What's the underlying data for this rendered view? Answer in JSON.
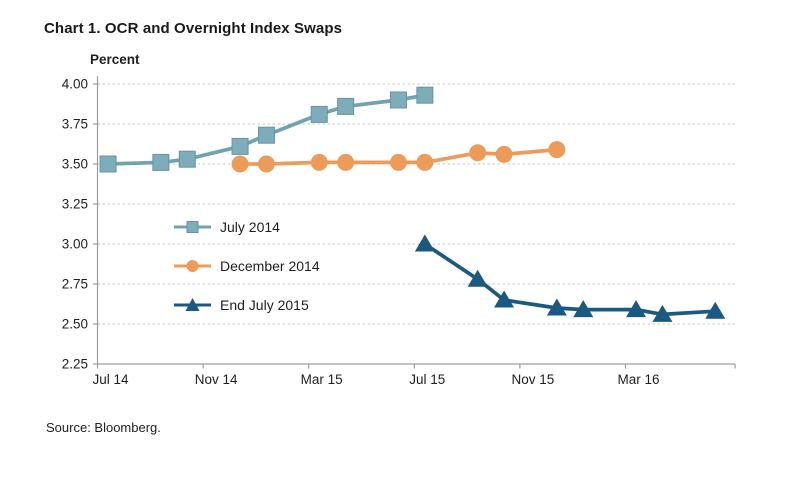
{
  "title": "Chart 1. OCR and Overnight Index Swaps",
  "source": "Source: Bloomberg.",
  "chart_data": {
    "type": "line",
    "title": "Chart 1. OCR and Overnight Index Swaps",
    "ylabel": "Percent",
    "ylim": [
      2.25,
      4.0
    ],
    "ytick_labels": [
      "4.00",
      "3.75",
      "3.50",
      "3.25",
      "3.00",
      "2.75",
      "2.50",
      "2.25"
    ],
    "x_axis": {
      "unit": "months after Jul 2014",
      "range_months": [
        0,
        24.15
      ],
      "tick_months": [
        0,
        4,
        8,
        12,
        16,
        20
      ],
      "tick_labels": [
        "Jul 14",
        "Nov 14",
        "Mar 15",
        "Jul 15",
        "Nov 15",
        "Mar 16"
      ]
    },
    "grid": {
      "horizontal_dashed": true,
      "color": "#c9c9c9"
    },
    "axis_color": "#9d9d9d",
    "text_color": "#1f1f1f",
    "legend_position": "inside-left-middle",
    "series": [
      {
        "name": "July 2014",
        "marker": "square",
        "color": "#7dacba",
        "line_color": "#6fa3b2",
        "points": [
          {
            "date": "Jul 14",
            "m": 0.4,
            "value": 3.5
          },
          {
            "date": "Sep 14",
            "m": 2.4,
            "value": 3.51
          },
          {
            "date": "Oct 14",
            "m": 3.4,
            "value": 3.53
          },
          {
            "date": "Dec 14",
            "m": 5.4,
            "value": 3.61
          },
          {
            "date": "Jan 15",
            "m": 6.4,
            "value": 3.68
          },
          {
            "date": "Mar 15",
            "m": 8.4,
            "value": 3.81
          },
          {
            "date": "Apr 15",
            "m": 9.4,
            "value": 3.86
          },
          {
            "date": "Jun 15",
            "m": 11.4,
            "value": 3.9
          },
          {
            "date": "Jul 15",
            "m": 12.4,
            "value": 3.93
          }
        ]
      },
      {
        "name": "December 2014",
        "marker": "circle",
        "color": "#ec9b58",
        "line_color": "#ec9b58",
        "points": [
          {
            "date": "Dec 14",
            "m": 5.4,
            "value": 3.5
          },
          {
            "date": "Jan 15",
            "m": 6.4,
            "value": 3.5
          },
          {
            "date": "Mar 15",
            "m": 8.4,
            "value": 3.51
          },
          {
            "date": "Apr 15",
            "m": 9.4,
            "value": 3.51
          },
          {
            "date": "Jun 15",
            "m": 11.4,
            "value": 3.51
          },
          {
            "date": "Jul 15",
            "m": 12.4,
            "value": 3.51
          },
          {
            "date": "Sep 15",
            "m": 14.4,
            "value": 3.57
          },
          {
            "date": "Oct 15",
            "m": 15.4,
            "value": 3.56
          },
          {
            "date": "Dec 15",
            "m": 17.4,
            "value": 3.59
          }
        ]
      },
      {
        "name": "End July 2015",
        "marker": "triangle",
        "color": "#1a5a82",
        "line_color": "#1a5a82",
        "points": [
          {
            "date": "Jul 15",
            "m": 12.4,
            "value": 3.0
          },
          {
            "date": "Sep 15",
            "m": 14.4,
            "value": 2.78
          },
          {
            "date": "Oct 15",
            "m": 15.4,
            "value": 2.65
          },
          {
            "date": "Dec 15",
            "m": 17.4,
            "value": 2.6
          },
          {
            "date": "Jan 16",
            "m": 18.4,
            "value": 2.59
          },
          {
            "date": "Mar 16",
            "m": 20.4,
            "value": 2.59
          },
          {
            "date": "Apr 16",
            "m": 21.4,
            "value": 2.56
          },
          {
            "date": "Jun 16",
            "m": 23.4,
            "value": 2.58
          }
        ]
      }
    ]
  }
}
